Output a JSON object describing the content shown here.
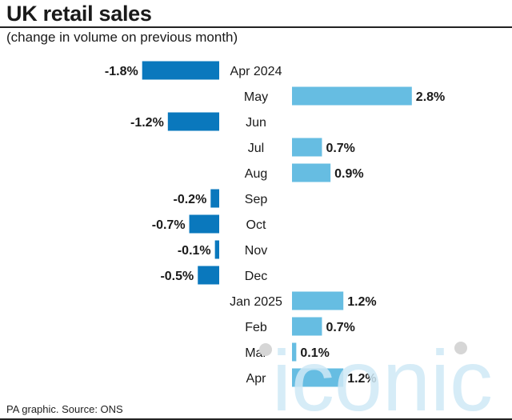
{
  "header": {
    "title": "UK retail sales",
    "subtitle": "(change in volume on previous month)"
  },
  "footer": {
    "source": "PA graphic. Source: ONS"
  },
  "watermark": {
    "text": "iconic"
  },
  "colors": {
    "negative": "#0a78bd",
    "positive": "#66bde2",
    "text": "#1a1a1a",
    "watermark": "#cfe9f6"
  },
  "chart_data": {
    "type": "bar",
    "orientation": "horizontal",
    "categories": [
      "Apr 2024",
      "May",
      "Jun",
      "Jul",
      "Aug",
      "Sep",
      "Oct",
      "Nov",
      "Dec",
      "Jan 2025",
      "Feb",
      "Mar",
      "Apr"
    ],
    "values": [
      -1.8,
      2.8,
      -1.2,
      0.7,
      0.9,
      -0.2,
      -0.7,
      -0.1,
      -0.5,
      1.2,
      0.7,
      0.1,
      1.2
    ],
    "value_labels": [
      "-1.8%",
      "2.8%",
      "-1.2%",
      "0.7%",
      "0.9%",
      "-0.2%",
      "-0.7%",
      "-0.1%",
      "-0.5%",
      "1.2%",
      "0.7%",
      "0.1%",
      "1.2%"
    ],
    "unit": "%",
    "title": "UK retail sales",
    "subtitle": "(change in volume on previous month)",
    "grid": false,
    "legend": "none"
  }
}
